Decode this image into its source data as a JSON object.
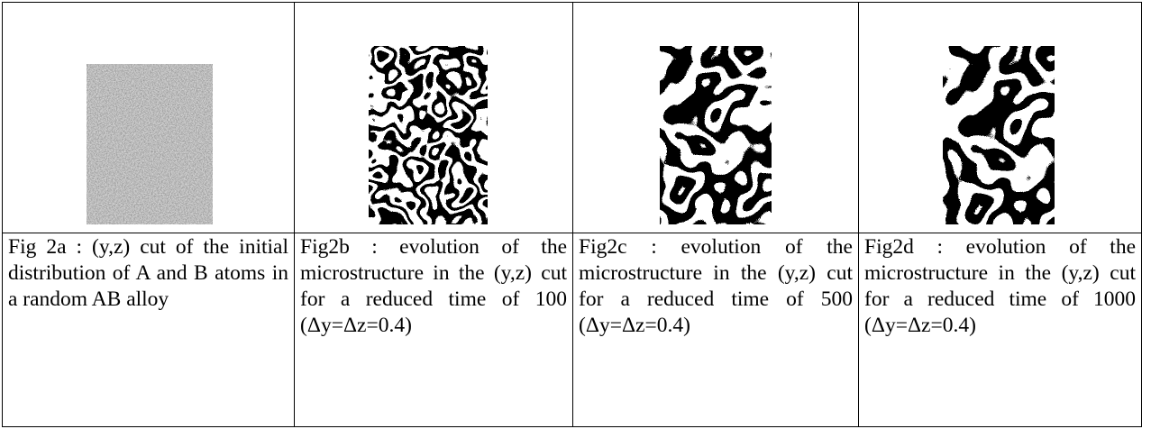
{
  "table": {
    "captions": [
      "Fig 2a : (y,z) cut of the initial distribution of A and B atoms in a random AB alloy",
      "Fig2b : evolution of the microstructure in the (y,z) cut for a reduced time of 100 (Δy=Δz=0.4)",
      "Fig2c : evolution of the microstructure in the (y,z) cut for a reduced time of 500 (Δy=Δz=0.4)",
      "Fig2d : evolution of the microstructure in the (y,z) cut for a reduced time of 1000 (Δy=Δz=0.4)"
    ]
  }
}
